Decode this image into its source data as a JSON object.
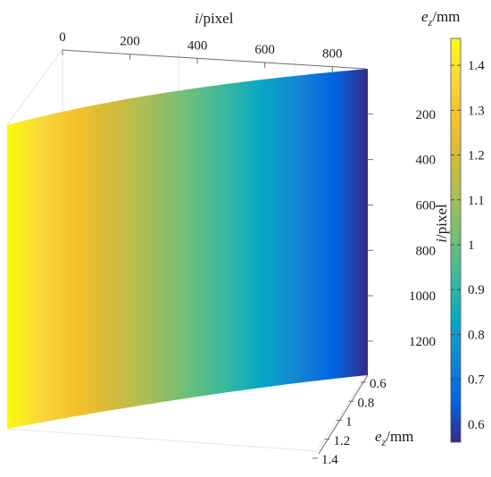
{
  "chart_data": {
    "type": "surface",
    "x_axis": {
      "label_italic": "i",
      "label_rest": "/pixel",
      "ticks": [
        0,
        200,
        400,
        600,
        800
      ],
      "range": [
        0,
        900
      ]
    },
    "y_axis": {
      "label_italic": "i",
      "label_rest": "/pixel",
      "ticks": [
        200,
        400,
        600,
        800,
        1000,
        1200
      ],
      "range": [
        0,
        1350
      ]
    },
    "z_axis": {
      "label_italic": "e",
      "label_sub": "z",
      "label_rest": "/mm",
      "ticks": [
        0.6,
        0.8,
        1,
        1.2,
        1.4
      ]
    },
    "colorbar": {
      "label_italic": "e",
      "label_sub": "z",
      "label_rest": "/mm",
      "min": 0.56,
      "max": 1.46,
      "ticks": [
        0.6,
        0.7,
        0.8,
        0.9,
        1,
        1.1,
        1.2,
        1.3,
        1.4
      ],
      "colormap": "parula"
    },
    "surface": {
      "ez_at_x0": 1.45,
      "ez_at_xmax": 0.57,
      "variation": "linear along x, constant along y"
    },
    "grid": true
  }
}
